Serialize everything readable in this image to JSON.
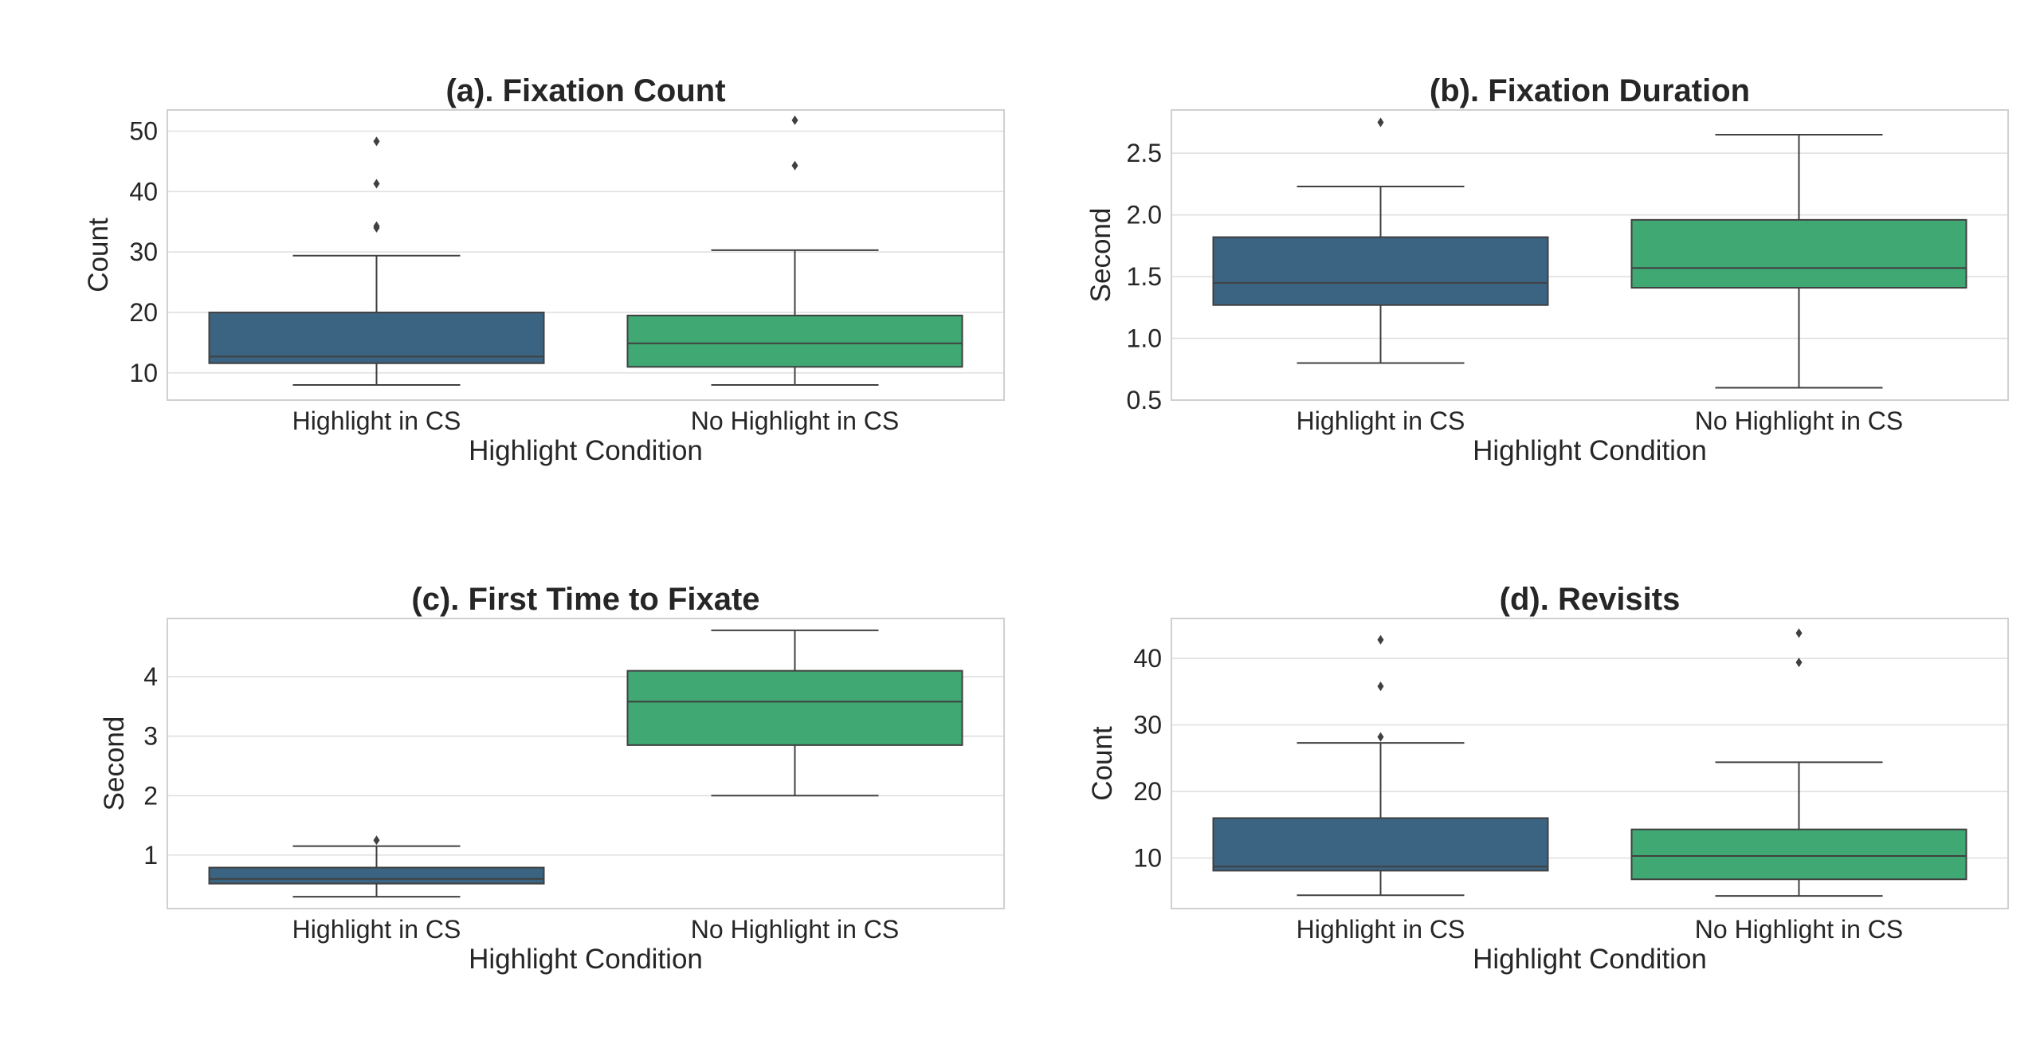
{
  "chart_data": [
    {
      "type": "box",
      "title": "(a). Fixation Count",
      "xlabel": "Highlight Condition",
      "ylabel": "Count",
      "ylim": [
        5.5,
        53.5
      ],
      "yticks": [
        10,
        20,
        30,
        40,
        50
      ],
      "ytick_labels": [
        "10",
        "20",
        "30",
        "40",
        "50"
      ],
      "categories": [
        "Highlight in CS",
        "No Highlight in CS"
      ],
      "boxes": [
        {
          "category": "Highlight in CS",
          "whislo": 8,
          "q1": 11.6,
          "median": 12.7,
          "q3": 20,
          "whishi": 29.4,
          "fliers": [
            34,
            34.3,
            41.3,
            48.3
          ]
        },
        {
          "category": "No Highlight in CS",
          "whislo": 8,
          "q1": 11,
          "median": 14.9,
          "q3": 19.5,
          "whishi": 30.3,
          "fliers": [
            44.3,
            51.8
          ]
        }
      ],
      "colors": [
        "#3b6482",
        "#3fa873"
      ]
    },
    {
      "type": "box",
      "title": "(b). Fixation Duration",
      "xlabel": "Highlight Condition",
      "ylabel": "Second",
      "ylim": [
        0.5,
        2.85
      ],
      "yticks": [
        0.5,
        1.0,
        1.5,
        2.0,
        2.5
      ],
      "ytick_labels": [
        "0.5",
        "1.0",
        "1.5",
        "2.0",
        "2.5"
      ],
      "categories": [
        "Highlight in CS",
        "No Highlight in CS"
      ],
      "boxes": [
        {
          "category": "Highlight in CS",
          "whislo": 0.8,
          "q1": 1.27,
          "median": 1.45,
          "q3": 1.82,
          "whishi": 2.23,
          "fliers": [
            2.75
          ]
        },
        {
          "category": "No Highlight in CS",
          "whislo": 0.6,
          "q1": 1.41,
          "median": 1.57,
          "q3": 1.96,
          "whishi": 2.65,
          "fliers": []
        }
      ],
      "colors": [
        "#3b6482",
        "#3fa873"
      ]
    },
    {
      "type": "box",
      "title": "(c). First Time to Fixate",
      "xlabel": "Highlight Condition",
      "ylabel": "Second",
      "ylim": [
        0.1,
        4.98
      ],
      "yticks": [
        1,
        2,
        3,
        4
      ],
      "ytick_labels": [
        "1",
        "2",
        "3",
        "4"
      ],
      "categories": [
        "Highlight in CS",
        "No Highlight in CS"
      ],
      "boxes": [
        {
          "category": "Highlight in CS",
          "whislo": 0.3,
          "q1": 0.52,
          "median": 0.6,
          "q3": 0.79,
          "whishi": 1.15,
          "fliers": [
            1.25
          ]
        },
        {
          "category": "No Highlight in CS",
          "whislo": 2.0,
          "q1": 2.85,
          "median": 3.58,
          "q3": 4.1,
          "whishi": 4.78,
          "fliers": []
        }
      ],
      "colors": [
        "#3b6482",
        "#3fa873"
      ]
    },
    {
      "type": "box",
      "title": "(d). Revisits",
      "xlabel": "Highlight Condition",
      "ylabel": "Count",
      "ylim": [
        2.4,
        46
      ],
      "yticks": [
        10,
        20,
        30,
        40
      ],
      "ytick_labels": [
        "10",
        "20",
        "30",
        "40"
      ],
      "categories": [
        "Highlight in CS",
        "No Highlight in CS"
      ],
      "boxes": [
        {
          "category": "Highlight in CS",
          "whislo": 4.4,
          "q1": 8.1,
          "median": 8.7,
          "q3": 16,
          "whishi": 27.3,
          "fliers": [
            28.2,
            35.8,
            42.8
          ]
        },
        {
          "category": "No Highlight in CS",
          "whislo": 4.3,
          "q1": 6.8,
          "median": 10.3,
          "q3": 14.3,
          "whishi": 24.4,
          "fliers": [
            39.4,
            43.8
          ]
        }
      ],
      "colors": [
        "#3b6482",
        "#3fa873"
      ]
    }
  ]
}
